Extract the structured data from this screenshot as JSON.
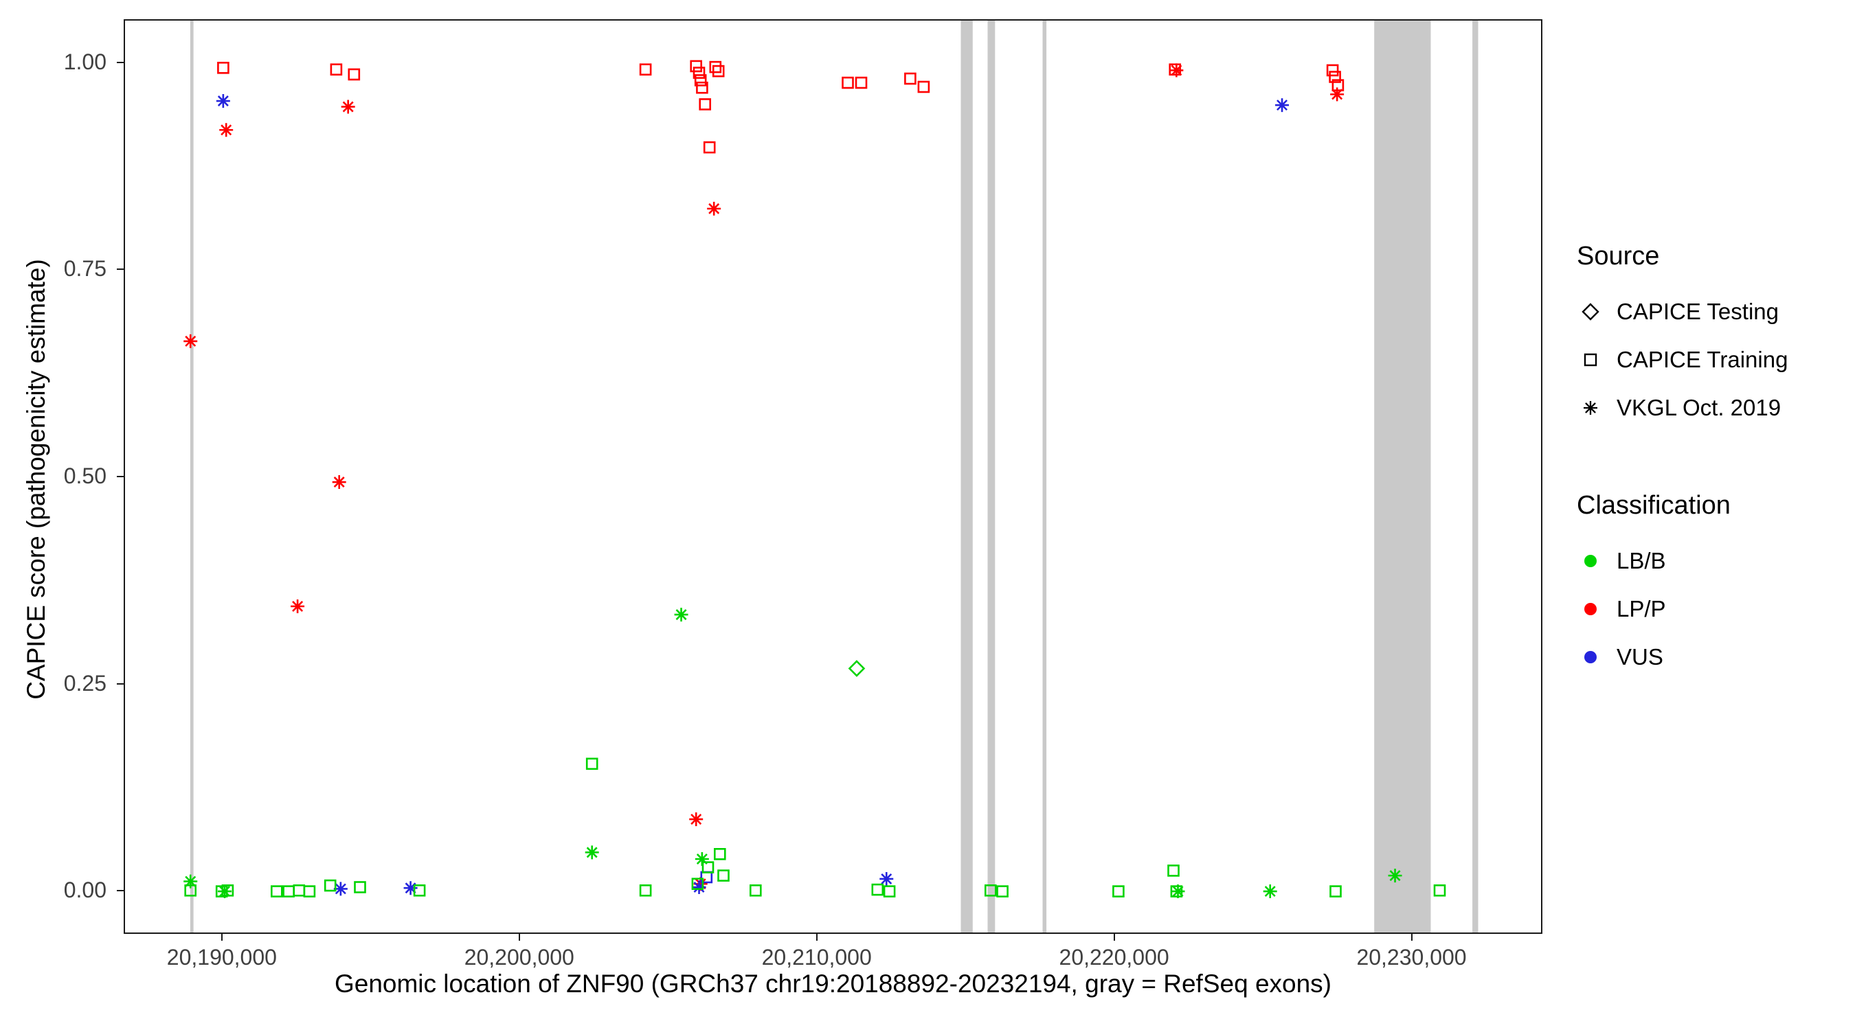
{
  "legend": {
    "source": {
      "title": "Source",
      "items": [
        {
          "label": "CAPICE Testing",
          "shape": "diamond"
        },
        {
          "label": "CAPICE Training",
          "shape": "square"
        },
        {
          "label": "VKGL Oct. 2019",
          "shape": "asterisk"
        }
      ]
    },
    "classification": {
      "title": "Classification",
      "items": [
        {
          "label": "LB/B"
        },
        {
          "label": "LP/P"
        },
        {
          "label": "VUS"
        }
      ]
    }
  },
  "chart_data": {
    "type": "scatter",
    "title": "",
    "xlabel": "Genomic location of ZNF90 (GRCh37 chr19:20188892-20232194, gray = RefSeq exons)",
    "ylabel": "CAPICE score (pathogenicity estimate)",
    "x_domain": [
      20186700,
      20234400
    ],
    "y_domain": [
      -0.052,
      1.052
    ],
    "grid": false,
    "legend_position": "right",
    "x_ticks": [
      {
        "value": 20190000,
        "label": "20,190,000"
      },
      {
        "value": 20200000,
        "label": "20,200,000"
      },
      {
        "value": 20210000,
        "label": "20,210,000"
      },
      {
        "value": 20220000,
        "label": "20,220,000"
      },
      {
        "value": 20230000,
        "label": "20,230,000"
      }
    ],
    "y_ticks": [
      {
        "value": 0.0,
        "label": "0.00"
      },
      {
        "value": 0.25,
        "label": "0.25"
      },
      {
        "value": 0.5,
        "label": "0.50"
      },
      {
        "value": 0.75,
        "label": "0.75"
      },
      {
        "value": 1.0,
        "label": "1.00"
      }
    ],
    "exon_color": "#c9c9c9",
    "exons": [
      [
        20188892,
        20189000
      ],
      [
        20214800,
        20215200
      ],
      [
        20215700,
        20215950
      ],
      [
        20217550,
        20217680
      ],
      [
        20228700,
        20230600
      ],
      [
        20232000,
        20232194
      ]
    ],
    "shapes": {
      "CAPICE Testing": "diamond",
      "CAPICE Training": "square",
      "VKGL Oct. 2019": "asterisk"
    },
    "colors": {
      "LB/B": "#00d400",
      "LP/P": "#ff0000",
      "VUS": "#2424dd"
    },
    "points": [
      {
        "x": 20190000,
        "y": 0.995,
        "source": "CAPICE Training",
        "class": "LP/P"
      },
      {
        "x": 20193800,
        "y": 0.993,
        "source": "CAPICE Training",
        "class": "LP/P"
      },
      {
        "x": 20194400,
        "y": 0.987,
        "source": "CAPICE Training",
        "class": "LP/P"
      },
      {
        "x": 20204200,
        "y": 0.993,
        "source": "CAPICE Training",
        "class": "LP/P"
      },
      {
        "x": 20205900,
        "y": 0.997,
        "source": "CAPICE Training",
        "class": "LP/P"
      },
      {
        "x": 20206000,
        "y": 0.989,
        "source": "CAPICE Training",
        "class": "LP/P"
      },
      {
        "x": 20206050,
        "y": 0.98,
        "source": "CAPICE Training",
        "class": "LP/P"
      },
      {
        "x": 20206100,
        "y": 0.971,
        "source": "CAPICE Training",
        "class": "LP/P"
      },
      {
        "x": 20206550,
        "y": 0.996,
        "source": "CAPICE Training",
        "class": "LP/P"
      },
      {
        "x": 20206650,
        "y": 0.991,
        "source": "CAPICE Training",
        "class": "LP/P"
      },
      {
        "x": 20206200,
        "y": 0.951,
        "source": "CAPICE Training",
        "class": "LP/P"
      },
      {
        "x": 20206350,
        "y": 0.899,
        "source": "CAPICE Training",
        "class": "LP/P"
      },
      {
        "x": 20211000,
        "y": 0.977,
        "source": "CAPICE Training",
        "class": "LP/P"
      },
      {
        "x": 20211450,
        "y": 0.977,
        "source": "CAPICE Training",
        "class": "LP/P"
      },
      {
        "x": 20213100,
        "y": 0.982,
        "source": "CAPICE Training",
        "class": "LP/P"
      },
      {
        "x": 20213550,
        "y": 0.972,
        "source": "CAPICE Training",
        "class": "LP/P"
      },
      {
        "x": 20222000,
        "y": 0.993,
        "source": "CAPICE Training",
        "class": "LP/P"
      },
      {
        "x": 20227300,
        "y": 0.992,
        "source": "CAPICE Training",
        "class": "LP/P"
      },
      {
        "x": 20227380,
        "y": 0.984,
        "source": "CAPICE Training",
        "class": "LP/P"
      },
      {
        "x": 20227480,
        "y": 0.974,
        "source": "CAPICE Training",
        "class": "LP/P"
      },
      {
        "x": 20188900,
        "y": 0.665,
        "source": "VKGL Oct. 2019",
        "class": "LP/P"
      },
      {
        "x": 20190100,
        "y": 0.92,
        "source": "VKGL Oct. 2019",
        "class": "LP/P"
      },
      {
        "x": 20194200,
        "y": 0.948,
        "source": "VKGL Oct. 2019",
        "class": "LP/P"
      },
      {
        "x": 20193900,
        "y": 0.495,
        "source": "VKGL Oct. 2019",
        "class": "LP/P"
      },
      {
        "x": 20192500,
        "y": 0.345,
        "source": "VKGL Oct. 2019",
        "class": "LP/P"
      },
      {
        "x": 20206500,
        "y": 0.825,
        "source": "VKGL Oct. 2019",
        "class": "LP/P"
      },
      {
        "x": 20205900,
        "y": 0.088,
        "source": "VKGL Oct. 2019",
        "class": "LP/P"
      },
      {
        "x": 20206050,
        "y": 0.01,
        "source": "VKGL Oct. 2019",
        "class": "LP/P"
      },
      {
        "x": 20222050,
        "y": 0.992,
        "source": "VKGL Oct. 2019",
        "class": "LP/P"
      },
      {
        "x": 20227450,
        "y": 0.963,
        "source": "VKGL Oct. 2019",
        "class": "LP/P"
      },
      {
        "x": 20190000,
        "y": 0.955,
        "source": "VKGL Oct. 2019",
        "class": "VUS"
      },
      {
        "x": 20225600,
        "y": 0.95,
        "source": "VKGL Oct. 2019",
        "class": "VUS"
      },
      {
        "x": 20193950,
        "y": 0.004,
        "source": "VKGL Oct. 2019",
        "class": "VUS"
      },
      {
        "x": 20196300,
        "y": 0.005,
        "source": "VKGL Oct. 2019",
        "class": "VUS"
      },
      {
        "x": 20206000,
        "y": 0.006,
        "source": "VKGL Oct. 2019",
        "class": "VUS"
      },
      {
        "x": 20212300,
        "y": 0.016,
        "source": "VKGL Oct. 2019",
        "class": "VUS"
      },
      {
        "x": 20206250,
        "y": 0.018,
        "source": "CAPICE Training",
        "class": "VUS"
      },
      {
        "x": 20211300,
        "y": 0.27,
        "source": "CAPICE Testing",
        "class": "LB/B"
      },
      {
        "x": 20188900,
        "y": 0.013,
        "source": "VKGL Oct. 2019",
        "class": "LB/B"
      },
      {
        "x": 20190050,
        "y": 0.001,
        "source": "VKGL Oct. 2019",
        "class": "LB/B"
      },
      {
        "x": 20202400,
        "y": 0.048,
        "source": "VKGL Oct. 2019",
        "class": "LB/B"
      },
      {
        "x": 20205400,
        "y": 0.335,
        "source": "VKGL Oct. 2019",
        "class": "LB/B"
      },
      {
        "x": 20206100,
        "y": 0.04,
        "source": "VKGL Oct. 2019",
        "class": "LB/B"
      },
      {
        "x": 20222100,
        "y": 0.001,
        "source": "VKGL Oct. 2019",
        "class": "LB/B"
      },
      {
        "x": 20225200,
        "y": 0.001,
        "source": "VKGL Oct. 2019",
        "class": "LB/B"
      },
      {
        "x": 20229400,
        "y": 0.02,
        "source": "VKGL Oct. 2019",
        "class": "LB/B"
      },
      {
        "x": 20188900,
        "y": 0.002,
        "source": "CAPICE Training",
        "class": "LB/B"
      },
      {
        "x": 20189950,
        "y": 0.001,
        "source": "CAPICE Training",
        "class": "LB/B"
      },
      {
        "x": 20190150,
        "y": 0.002,
        "source": "CAPICE Training",
        "class": "LB/B"
      },
      {
        "x": 20191800,
        "y": 0.001,
        "source": "CAPICE Training",
        "class": "LB/B"
      },
      {
        "x": 20192200,
        "y": 0.001,
        "source": "CAPICE Training",
        "class": "LB/B"
      },
      {
        "x": 20192550,
        "y": 0.002,
        "source": "CAPICE Training",
        "class": "LB/B"
      },
      {
        "x": 20192900,
        "y": 0.001,
        "source": "CAPICE Training",
        "class": "LB/B"
      },
      {
        "x": 20193600,
        "y": 0.008,
        "source": "CAPICE Training",
        "class": "LB/B"
      },
      {
        "x": 20194600,
        "y": 0.006,
        "source": "CAPICE Training",
        "class": "LB/B"
      },
      {
        "x": 20196600,
        "y": 0.002,
        "source": "CAPICE Training",
        "class": "LB/B"
      },
      {
        "x": 20202400,
        "y": 0.155,
        "source": "CAPICE Training",
        "class": "LB/B"
      },
      {
        "x": 20204200,
        "y": 0.002,
        "source": "CAPICE Training",
        "class": "LB/B"
      },
      {
        "x": 20205950,
        "y": 0.01,
        "source": "CAPICE Training",
        "class": "LB/B"
      },
      {
        "x": 20206300,
        "y": 0.03,
        "source": "CAPICE Training",
        "class": "LB/B"
      },
      {
        "x": 20206700,
        "y": 0.046,
        "source": "CAPICE Training",
        "class": "LB/B"
      },
      {
        "x": 20206820,
        "y": 0.02,
        "source": "CAPICE Training",
        "class": "LB/B"
      },
      {
        "x": 20207900,
        "y": 0.002,
        "source": "CAPICE Training",
        "class": "LB/B"
      },
      {
        "x": 20212000,
        "y": 0.003,
        "source": "CAPICE Training",
        "class": "LB/B"
      },
      {
        "x": 20212400,
        "y": 0.001,
        "source": "CAPICE Training",
        "class": "LB/B"
      },
      {
        "x": 20215800,
        "y": 0.002,
        "source": "CAPICE Training",
        "class": "LB/B"
      },
      {
        "x": 20216200,
        "y": 0.001,
        "source": "CAPICE Training",
        "class": "LB/B"
      },
      {
        "x": 20220100,
        "y": 0.001,
        "source": "CAPICE Training",
        "class": "LB/B"
      },
      {
        "x": 20221950,
        "y": 0.026,
        "source": "CAPICE Training",
        "class": "LB/B"
      },
      {
        "x": 20222050,
        "y": 0.001,
        "source": "CAPICE Training",
        "class": "LB/B"
      },
      {
        "x": 20227400,
        "y": 0.001,
        "source": "CAPICE Training",
        "class": "LB/B"
      },
      {
        "x": 20230900,
        "y": 0.002,
        "source": "CAPICE Training",
        "class": "LB/B"
      }
    ]
  }
}
